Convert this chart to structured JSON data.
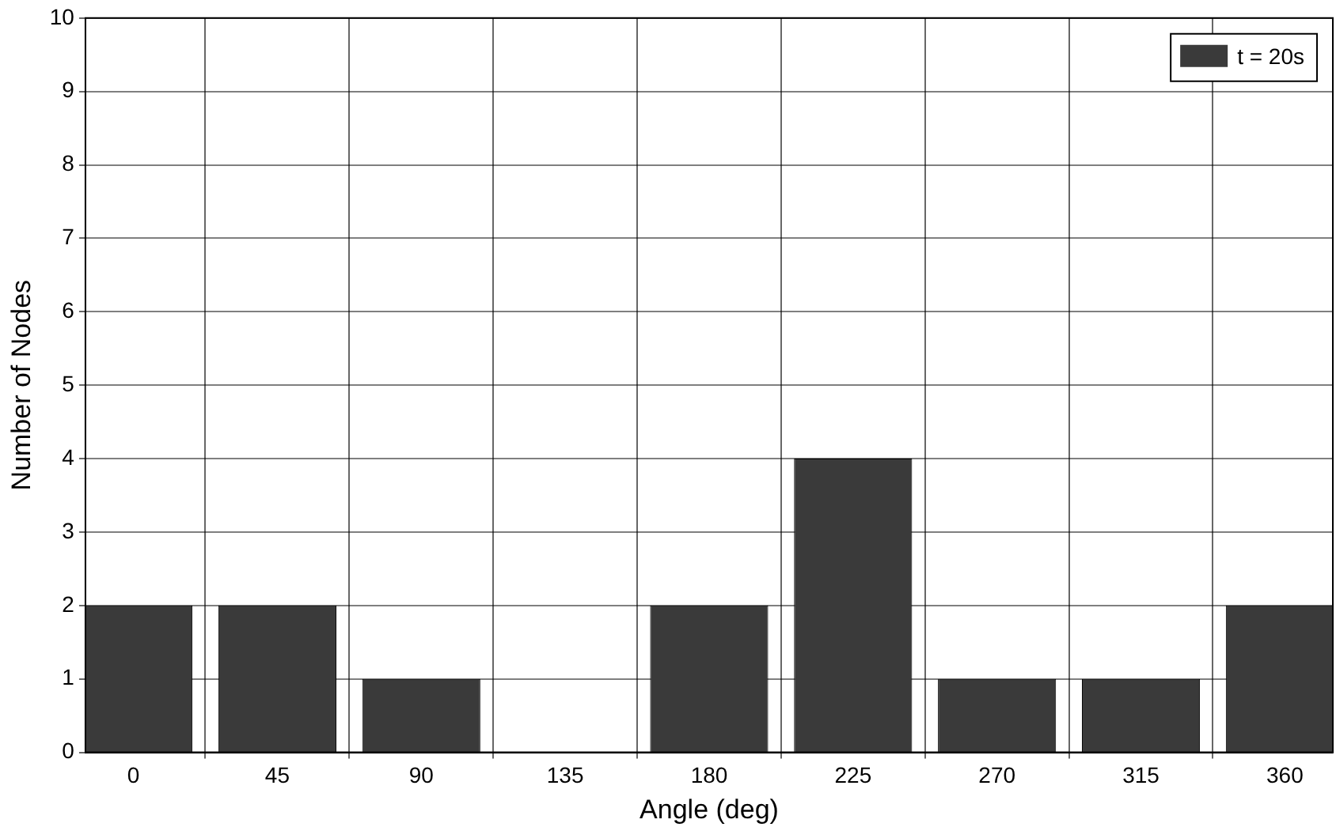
{
  "chart_data": {
    "type": "bar",
    "xlabel": "Angle (deg)",
    "ylabel": "Number of Nodes",
    "x": [
      0,
      45,
      90,
      135,
      180,
      225,
      270,
      315,
      360
    ],
    "series": [
      {
        "name": "t = 20s",
        "color": "#3a3a3a",
        "values": [
          2,
          2,
          1,
          0,
          2,
          4,
          1,
          1,
          2
        ]
      }
    ],
    "xlim": [
      -15,
      375
    ],
    "xticks": [
      0,
      45,
      90,
      135,
      180,
      225,
      270,
      315,
      360
    ],
    "ylim": [
      0,
      10
    ],
    "yticks": [
      0,
      1,
      2,
      3,
      4,
      5,
      6,
      7,
      8,
      9,
      10
    ],
    "grid": true,
    "legend": "top right"
  }
}
